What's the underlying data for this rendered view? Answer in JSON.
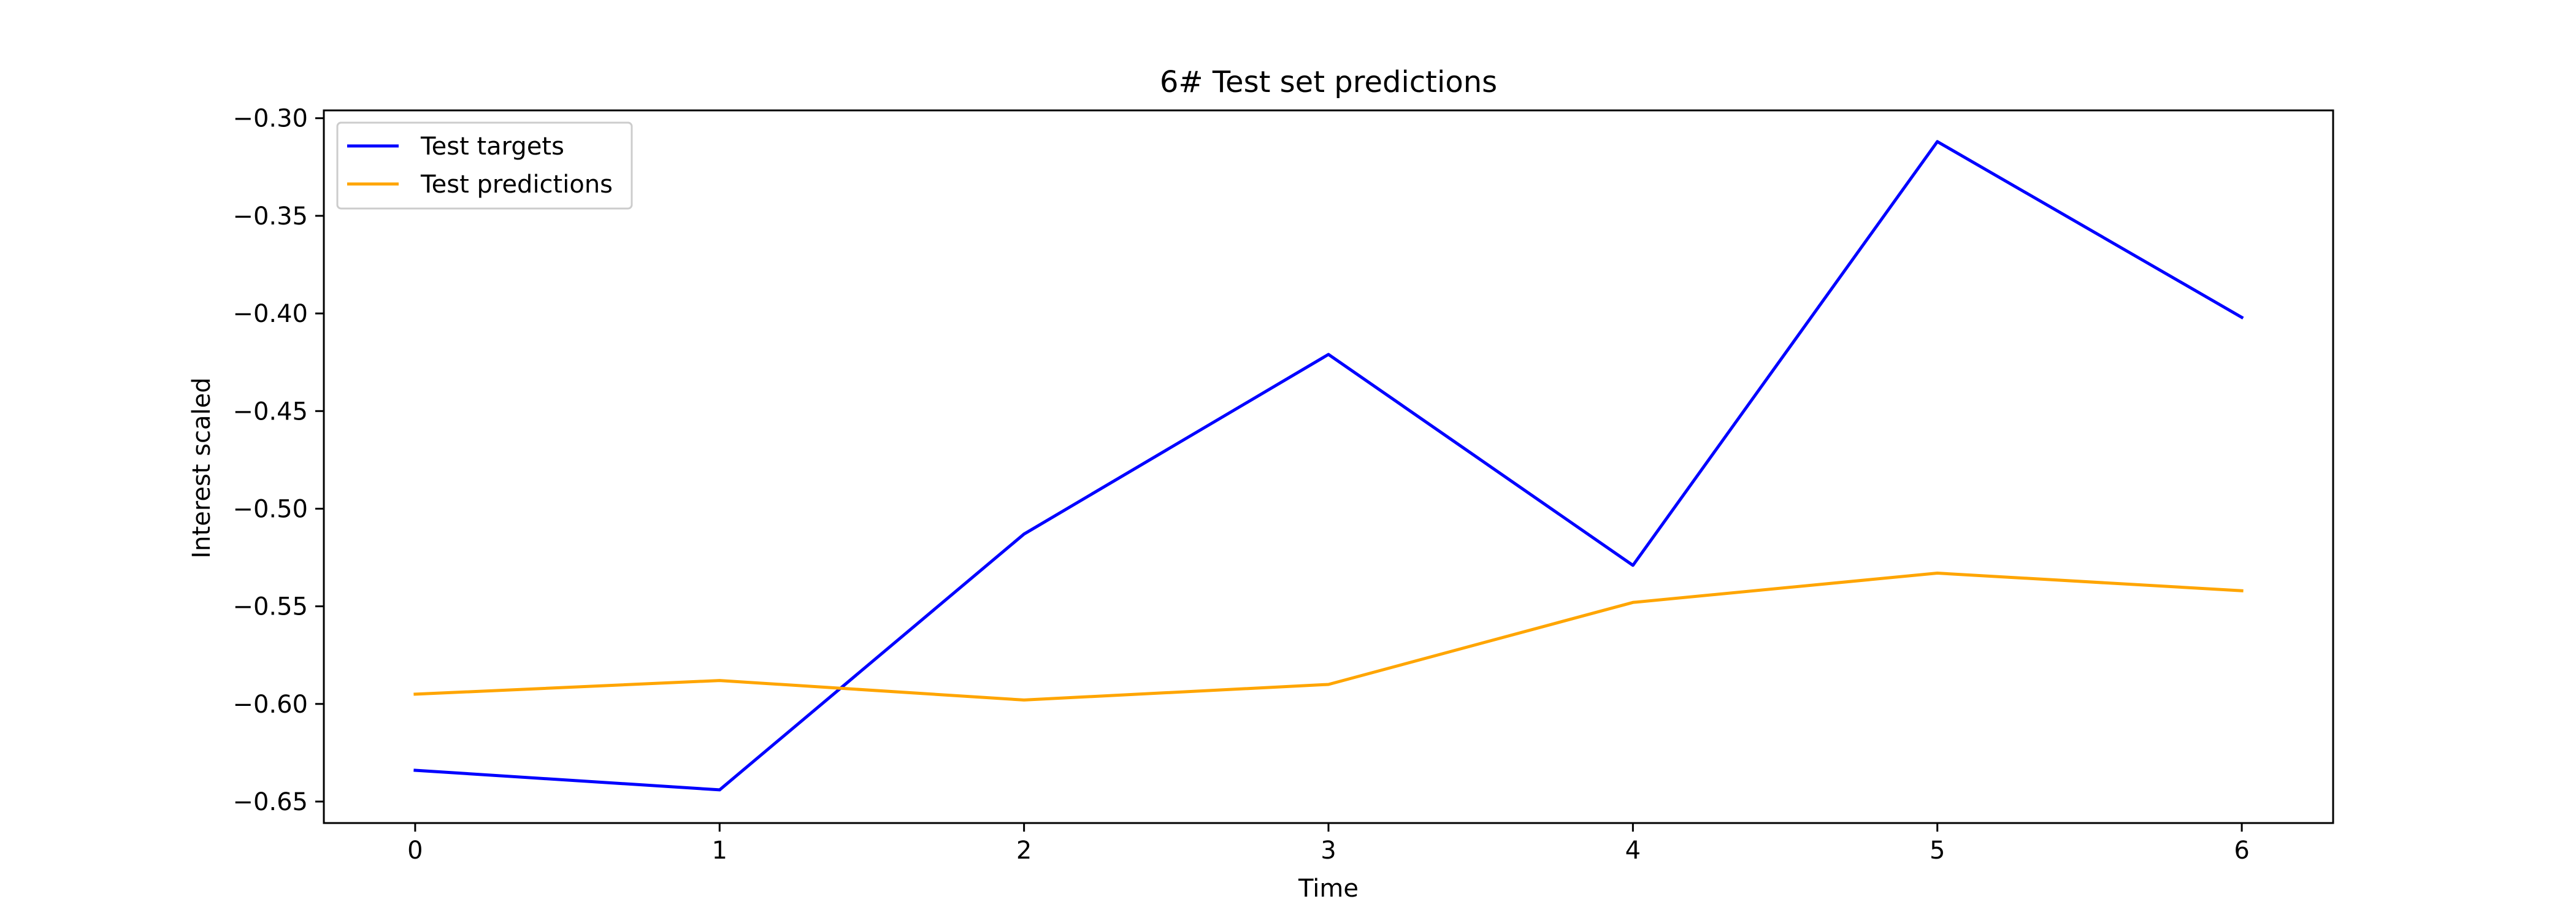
{
  "chart_data": {
    "type": "line",
    "title": "6# Test set predictions",
    "xlabel": "Time",
    "ylabel": "Interest scaled",
    "x": [
      0,
      1,
      2,
      3,
      4,
      5,
      6
    ],
    "xticks": [
      0,
      1,
      2,
      3,
      4,
      5,
      6
    ],
    "xlim": [
      -0.3,
      6.3
    ],
    "yticks": [
      -0.3,
      -0.35,
      -0.4,
      -0.45,
      -0.5,
      -0.55,
      -0.6,
      -0.65
    ],
    "ytick_labels": [
      "−0.30",
      "−0.35",
      "−0.40",
      "−0.45",
      "−0.50",
      "−0.55",
      "−0.60",
      "−0.65"
    ],
    "ylim": [
      -0.661,
      -0.296
    ],
    "grid": false,
    "legend_position": "upper left",
    "series": [
      {
        "name": "Test targets",
        "color": "#0000ff",
        "values": [
          -0.634,
          -0.644,
          -0.513,
          -0.421,
          -0.529,
          -0.312,
          -0.402
        ]
      },
      {
        "name": "Test predictions",
        "color": "#ffa500",
        "values": [
          -0.595,
          -0.588,
          -0.598,
          -0.59,
          -0.548,
          -0.533,
          -0.542
        ]
      }
    ]
  }
}
